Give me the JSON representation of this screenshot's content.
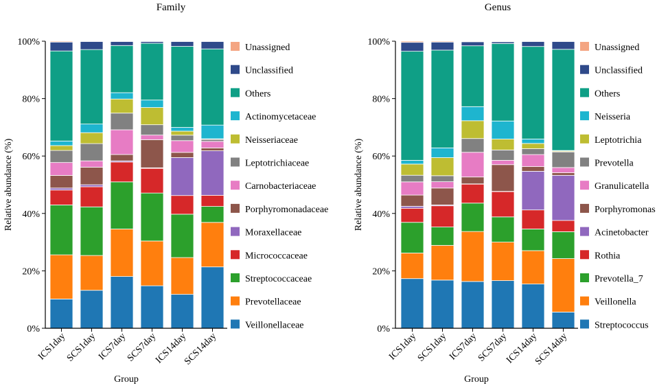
{
  "colors": {
    "Unassigned": "#f4a582",
    "Unclassified": "#2f4a8a",
    "Others": "#0f9f86",
    "cyan": "#1eb5cf",
    "olive": "#bebd32",
    "gray": "#818181",
    "pink": "#e77cc4",
    "brown": "#8d564b",
    "purple": "#9068be",
    "red": "#d62829",
    "green": "#2ca02c",
    "orange": "#ff7f0e",
    "blue": "#1f77b4"
  },
  "chart_data": [
    {
      "type": "bar",
      "stacked": true,
      "title": "Family",
      "xlabel": "Group",
      "ylabel": "Relative abundance (%)",
      "ylim": [
        0,
        100
      ],
      "yticks": [
        "0%",
        "20%",
        "40%",
        "60%",
        "80%",
        "100%"
      ],
      "categories": [
        "ICS1day",
        "SCS1day",
        "ICS7day",
        "SCS7day",
        "ICS14day",
        "SCS14day"
      ],
      "series": [
        {
          "name": "Veillonellaceae",
          "color_key": "blue",
          "values": [
            10.2,
            13.2,
            18.0,
            14.8,
            11.8,
            21.5
          ]
        },
        {
          "name": "Prevotellaceae",
          "color_key": "orange",
          "values": [
            15.4,
            12.1,
            16.5,
            15.6,
            12.8,
            15.6
          ]
        },
        {
          "name": "Streptococcaceae",
          "color_key": "green",
          "values": [
            17.4,
            16.9,
            16.4,
            16.7,
            15.1,
            5.6
          ]
        },
        {
          "name": "Micrococcaceae",
          "color_key": "red",
          "values": [
            5.2,
            7.0,
            6.9,
            8.6,
            6.5,
            3.9
          ]
        },
        {
          "name": "Moraxellaceae",
          "color_key": "purple",
          "values": [
            0.7,
            0.7,
            0.4,
            0.2,
            13.2,
            15.6
          ]
        },
        {
          "name": "Porphyromonadaceae",
          "color_key": "brown",
          "values": [
            4.4,
            6.1,
            2.2,
            9.8,
            1.8,
            1.0
          ]
        },
        {
          "name": "Carnobacteriaceae",
          "color_key": "pink",
          "values": [
            4.5,
            2.2,
            8.6,
            1.6,
            4.1,
            2.3
          ]
        },
        {
          "name": "Leptotrichiaceae",
          "color_key": "gray",
          "values": [
            4.2,
            6.0,
            5.8,
            3.6,
            1.9,
            0.7
          ]
        },
        {
          "name": "Neisseriaceae",
          "color_key": "olive",
          "values": [
            1.7,
            3.8,
            4.9,
            6.0,
            1.4,
            0.2
          ]
        },
        {
          "name": "Actinomycetaceae",
          "color_key": "cyan",
          "values": [
            1.6,
            3.0,
            2.2,
            2.6,
            1.3,
            4.8
          ]
        },
        {
          "name": "Others",
          "color_key": "Others",
          "values": [
            31.4,
            25.9,
            16.4,
            19.8,
            28.2,
            26.7
          ]
        },
        {
          "name": "Unclassified",
          "color_key": "Unclassified",
          "values": [
            3.1,
            2.8,
            1.4,
            0.6,
            1.7,
            2.6
          ]
        },
        {
          "name": "Unassigned",
          "color_key": "Unassigned",
          "values": [
            0.3,
            0.1,
            0.1,
            0.1,
            0.1,
            0.1
          ]
        }
      ],
      "legend": [
        {
          "label": "Unassigned",
          "color_key": "Unassigned"
        },
        {
          "label": "Unclassified",
          "color_key": "Unclassified"
        },
        {
          "label": "Others",
          "color_key": "Others"
        },
        {
          "label": "Actinomycetaceae",
          "color_key": "cyan"
        },
        {
          "label": "Neisseriaceae",
          "color_key": "olive"
        },
        {
          "label": "Leptotrichiaceae",
          "color_key": "gray"
        },
        {
          "label": "Carnobacteriaceae",
          "color_key": "pink"
        },
        {
          "label": "Porphyromonadaceae",
          "color_key": "brown"
        },
        {
          "label": "Moraxellaceae",
          "color_key": "purple"
        },
        {
          "label": "Micrococcaceae",
          "color_key": "red"
        },
        {
          "label": "Streptococcaceae",
          "color_key": "green"
        },
        {
          "label": "Prevotellaceae",
          "color_key": "orange"
        },
        {
          "label": "Veillonellaceae",
          "color_key": "blue"
        }
      ]
    },
    {
      "type": "bar",
      "stacked": true,
      "title": "Genus",
      "xlabel": "Group",
      "ylabel": "Relative abundance (%)",
      "ylim": [
        0,
        100
      ],
      "yticks": [
        "0%",
        "20%",
        "40%",
        "60%",
        "80%",
        "100%"
      ],
      "categories": [
        "ICS1day",
        "SCS1day",
        "ICS7day",
        "SCS7day",
        "ICS14day",
        "SCS14day"
      ],
      "series": [
        {
          "name": "Streptococcus",
          "color_key": "blue",
          "values": [
            17.3,
            16.8,
            16.3,
            16.6,
            15.1,
            5.6
          ]
        },
        {
          "name": "Veillonella",
          "color_key": "orange",
          "values": [
            8.9,
            12.1,
            17.4,
            13.4,
            11.4,
            18.5
          ]
        },
        {
          "name": "Prevotella_7",
          "color_key": "green",
          "values": [
            10.7,
            6.4,
            9.9,
            8.8,
            7.4,
            9.3
          ]
        },
        {
          "name": "Rothia",
          "color_key": "red",
          "values": [
            4.9,
            7.4,
            6.6,
            8.8,
            6.5,
            3.9
          ]
        },
        {
          "name": "Acinetobacter",
          "color_key": "purple",
          "values": [
            0.7,
            0.3,
            0.1,
            0.1,
            13.2,
            15.6
          ]
        },
        {
          "name": "Porphyromonas",
          "color_key": "brown",
          "values": [
            3.9,
            5.9,
            2.4,
            9.3,
            1.6,
            0.9
          ]
        },
        {
          "name": "Granulicatella",
          "color_key": "pink",
          "values": [
            4.6,
            2.2,
            8.6,
            1.5,
            4.1,
            1.8
          ]
        },
        {
          "name": "Prevotella",
          "color_key": "gray",
          "values": [
            2.3,
            2.1,
            4.8,
            3.6,
            2.0,
            5.4
          ]
        },
        {
          "name": "Leptotrichia",
          "color_key": "olive",
          "values": [
            3.9,
            6.3,
            6.2,
            3.8,
            1.8,
            0.3
          ]
        },
        {
          "name": "Neisseria",
          "color_key": "cyan",
          "values": [
            1.3,
            3.4,
            4.9,
            6.3,
            1.5,
            0.2
          ]
        },
        {
          "name": "Others",
          "color_key": "Others",
          "values": [
            38.0,
            34.1,
            21.2,
            27.0,
            31.6,
            35.0
          ]
        },
        {
          "name": "Unclassified",
          "color_key": "Unclassified",
          "values": [
            3.1,
            2.8,
            1.4,
            0.6,
            1.7,
            2.7
          ]
        },
        {
          "name": "Unassigned",
          "color_key": "Unassigned",
          "values": [
            0.4,
            0.3,
            0.2,
            0.2,
            0.1,
            0.1
          ]
        }
      ],
      "legend": [
        {
          "label": "Unassigned",
          "color_key": "Unassigned"
        },
        {
          "label": "Unclassified",
          "color_key": "Unclassified"
        },
        {
          "label": "Others",
          "color_key": "Others"
        },
        {
          "label": "Neisseria",
          "color_key": "cyan"
        },
        {
          "label": "Leptotrichia",
          "color_key": "olive"
        },
        {
          "label": "Prevotella",
          "color_key": "gray"
        },
        {
          "label": "Granulicatella",
          "color_key": "pink"
        },
        {
          "label": "Porphyromonas",
          "color_key": "brown"
        },
        {
          "label": "Acinetobacter",
          "color_key": "purple"
        },
        {
          "label": "Rothia",
          "color_key": "red"
        },
        {
          "label": "Prevotella_7",
          "color_key": "green"
        },
        {
          "label": "Veillonella",
          "color_key": "orange"
        },
        {
          "label": "Streptococcus",
          "color_key": "blue"
        }
      ]
    }
  ]
}
